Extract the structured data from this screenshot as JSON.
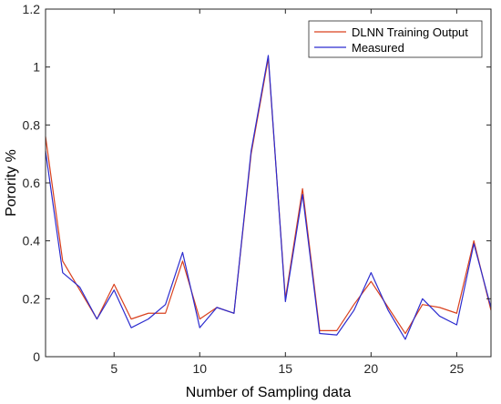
{
  "chart_data": {
    "type": "line",
    "title": "",
    "xlabel": "Number of Sampling data",
    "ylabel": "Porority %",
    "xlim": [
      1,
      27
    ],
    "ylim": [
      0,
      1.2
    ],
    "xticks": [
      5,
      10,
      15,
      20,
      25
    ],
    "yticks": [
      0,
      0.2,
      0.4,
      0.6,
      0.8,
      1,
      1.2
    ],
    "grid": false,
    "legend_position": "top-right",
    "x": [
      1,
      2,
      3,
      4,
      5,
      6,
      7,
      8,
      9,
      10,
      11,
      12,
      13,
      14,
      15,
      16,
      17,
      18,
      19,
      20,
      21,
      22,
      23,
      24,
      25,
      26,
      27
    ],
    "series": [
      {
        "name": "DLNN Training Output",
        "color": "#d9411e",
        "values": [
          0.76,
          0.33,
          0.23,
          0.13,
          0.25,
          0.13,
          0.15,
          0.15,
          0.33,
          0.13,
          0.17,
          0.15,
          0.7,
          1.03,
          0.2,
          0.58,
          0.09,
          0.09,
          0.18,
          0.26,
          0.17,
          0.08,
          0.18,
          0.17,
          0.15,
          0.4,
          0.16
        ]
      },
      {
        "name": "Measured",
        "color": "#2c2ccf",
        "values": [
          0.71,
          0.29,
          0.24,
          0.13,
          0.23,
          0.1,
          0.13,
          0.18,
          0.36,
          0.1,
          0.17,
          0.15,
          0.71,
          1.04,
          0.19,
          0.56,
          0.08,
          0.075,
          0.16,
          0.29,
          0.16,
          0.06,
          0.2,
          0.14,
          0.11,
          0.39,
          0.17
        ]
      }
    ]
  }
}
